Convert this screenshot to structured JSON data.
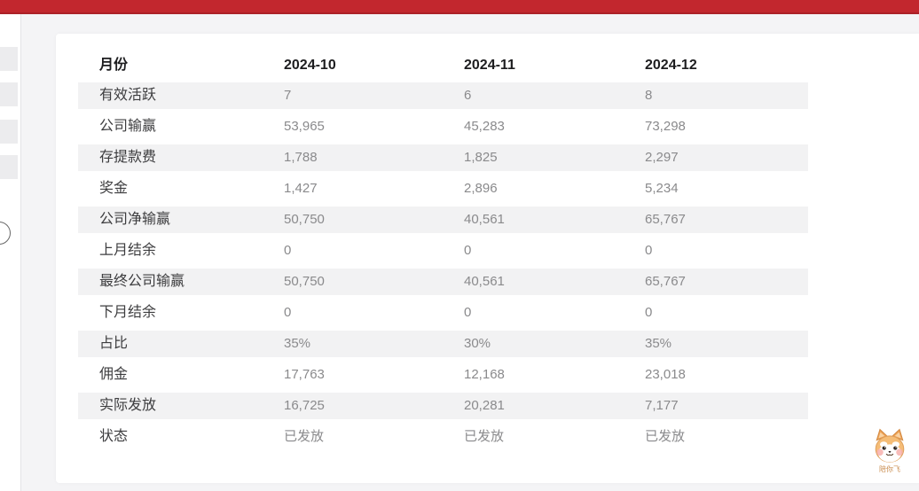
{
  "topbar": {
    "color": "#c2272e"
  },
  "table": {
    "header": {
      "label": "月份",
      "columns": [
        "2024-10",
        "2024-11",
        "2024-12"
      ]
    },
    "rows": [
      {
        "label": "有效活跃",
        "values": [
          "7",
          "6",
          "8"
        ]
      },
      {
        "label": "公司输赢",
        "values": [
          "53,965",
          "45,283",
          "73,298"
        ]
      },
      {
        "label": "存提款费",
        "values": [
          "1,788",
          "1,825",
          "2,297"
        ]
      },
      {
        "label": "奖金",
        "values": [
          "1,427",
          "2,896",
          "5,234"
        ]
      },
      {
        "label": "公司净输赢",
        "values": [
          "50,750",
          "40,561",
          "65,767"
        ]
      },
      {
        "label": "上月结余",
        "values": [
          "0",
          "0",
          "0"
        ]
      },
      {
        "label": "最终公司输赢",
        "values": [
          "50,750",
          "40,561",
          "65,767"
        ]
      },
      {
        "label": "下月结余",
        "values": [
          "0",
          "0",
          "0"
        ]
      },
      {
        "label": "占比",
        "values": [
          "35%",
          "30%",
          "35%"
        ]
      },
      {
        "label": "佣金",
        "values": [
          "17,763",
          "12,168",
          "23,018"
        ]
      },
      {
        "label": "实际发放",
        "values": [
          "16,725",
          "20,281",
          "7,177"
        ]
      },
      {
        "label": "状态",
        "values": [
          "已发放",
          "已发放",
          "已发放"
        ]
      }
    ],
    "stripe_color": "#f2f2f3"
  },
  "mascot": {
    "label": "陪你飞"
  }
}
